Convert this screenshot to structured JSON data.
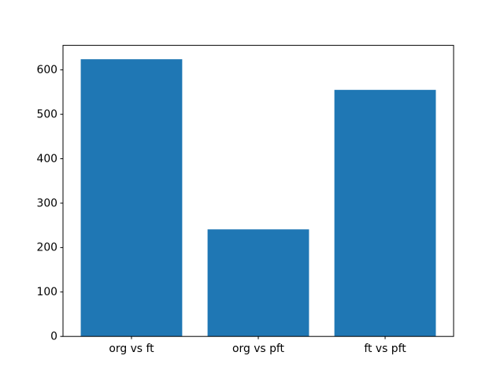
{
  "chart_data": {
    "type": "bar",
    "categories": [
      "org vs ft",
      "org vs pft",
      "ft vs pft"
    ],
    "values": [
      624,
      241,
      555
    ],
    "title": "",
    "xlabel": "",
    "ylabel": "",
    "ylim": [
      0,
      655.2
    ],
    "yticks": [
      0,
      100,
      200,
      300,
      400,
      500,
      600
    ],
    "ytick_labels": [
      "0",
      "100",
      "200",
      "300",
      "400",
      "500",
      "600"
    ],
    "bar_color": "#1f77b4",
    "axes_edge_color": "#000000",
    "tick_color": "#000000",
    "text_color": "#000000",
    "background_color": "#ffffff",
    "grid": false,
    "legend": "none",
    "bar_width_fraction": 0.8
  }
}
